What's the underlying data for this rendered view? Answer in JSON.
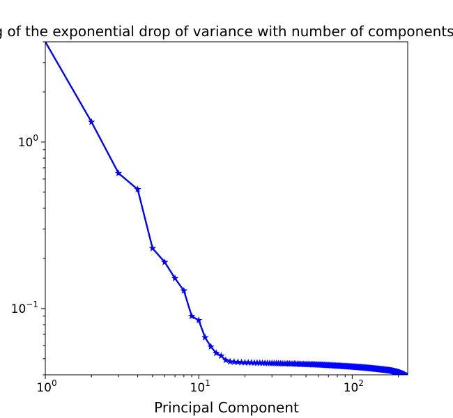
{
  "chart_data": {
    "type": "line",
    "title": "Log of the exponential drop of variance with number of components",
    "xlabel": "Principal Component",
    "ylabel": "",
    "x_scale": "log",
    "y_scale": "log",
    "xlim": [
      1,
      230
    ],
    "ylim": [
      0.04,
      4
    ],
    "grid": false,
    "legend": "none",
    "colors": {
      "line": "#0000ff",
      "axes": "#000000",
      "background": "#ffffff"
    },
    "marker": "star",
    "x_ticks": [
      {
        "base": "10",
        "exp": "0",
        "value": 1
      },
      {
        "base": "10",
        "exp": "1",
        "value": 10
      },
      {
        "base": "10",
        "exp": "2",
        "value": 100
      }
    ],
    "y_ticks": [
      {
        "base": "10",
        "exp": "0",
        "value": 1
      },
      {
        "base": "10",
        "exp": "−1",
        "value": 0.1
      }
    ],
    "series": [
      {
        "head": {
          "x": [
            1,
            2,
            3,
            4,
            5,
            6,
            7,
            8,
            9,
            10,
            11,
            12,
            13,
            14,
            15,
            16,
            17,
            18,
            19,
            20
          ],
          "y": [
            4.0,
            1.32,
            0.65,
            0.52,
            0.23,
            0.19,
            0.152,
            0.128,
            0.09,
            0.085,
            0.067,
            0.059,
            0.054,
            0.052,
            0.049,
            0.048,
            0.0478,
            0.0477,
            0.0475,
            0.0474
          ]
        },
        "tail": {
          "x_start": 21,
          "x_end": 230,
          "anchors": [
            [
              20,
              0.0474
            ],
            [
              40,
              0.0466
            ],
            [
              60,
              0.046
            ],
            [
              80,
              0.0453
            ],
            [
              100,
              0.0447
            ],
            [
              120,
              0.0441
            ],
            [
              150,
              0.0432
            ],
            [
              180,
              0.0423
            ],
            [
              200,
              0.0413
            ],
            [
              215,
              0.0403
            ],
            [
              230,
              0.039
            ]
          ]
        }
      }
    ]
  }
}
